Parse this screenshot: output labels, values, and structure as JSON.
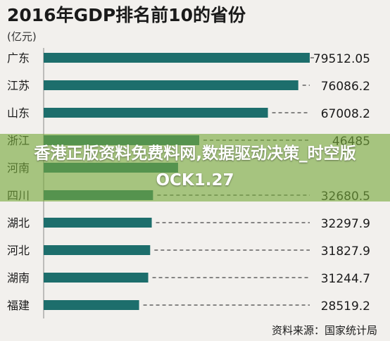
{
  "chart_data": {
    "type": "bar",
    "orientation": "horizontal",
    "title": "2016年GDP排名前10的省份",
    "unit": "(亿元)",
    "categories": [
      "广东",
      "江苏",
      "山东",
      "浙江",
      "河南",
      "四川",
      "湖北",
      "河北",
      "湖南",
      "福建"
    ],
    "values": [
      79512.05,
      76086.2,
      67008.2,
      46485,
      40160.01,
      32680.5,
      32297.9,
      31827.9,
      31244.7,
      28519.2
    ],
    "value_labels": [
      "79512.05",
      "76086.2",
      "67008.2",
      "46485",
      "",
      "32680.5",
      "32297.9",
      "31827.9",
      "31244.7",
      "28519.2"
    ],
    "xlim": [
      0,
      79512.05
    ],
    "grid": false,
    "legend": "none",
    "source": "资料来源：国家统计局",
    "colors": {
      "bar": "#1d6e6c",
      "background": "#f2f0ed",
      "text": "#1a1a1a",
      "leader": "#444444"
    }
  },
  "overlay": {
    "text": "香港正版资料免费料网,数据驱动决策_时空版OCK1.27",
    "color": "#7aaa3c"
  }
}
